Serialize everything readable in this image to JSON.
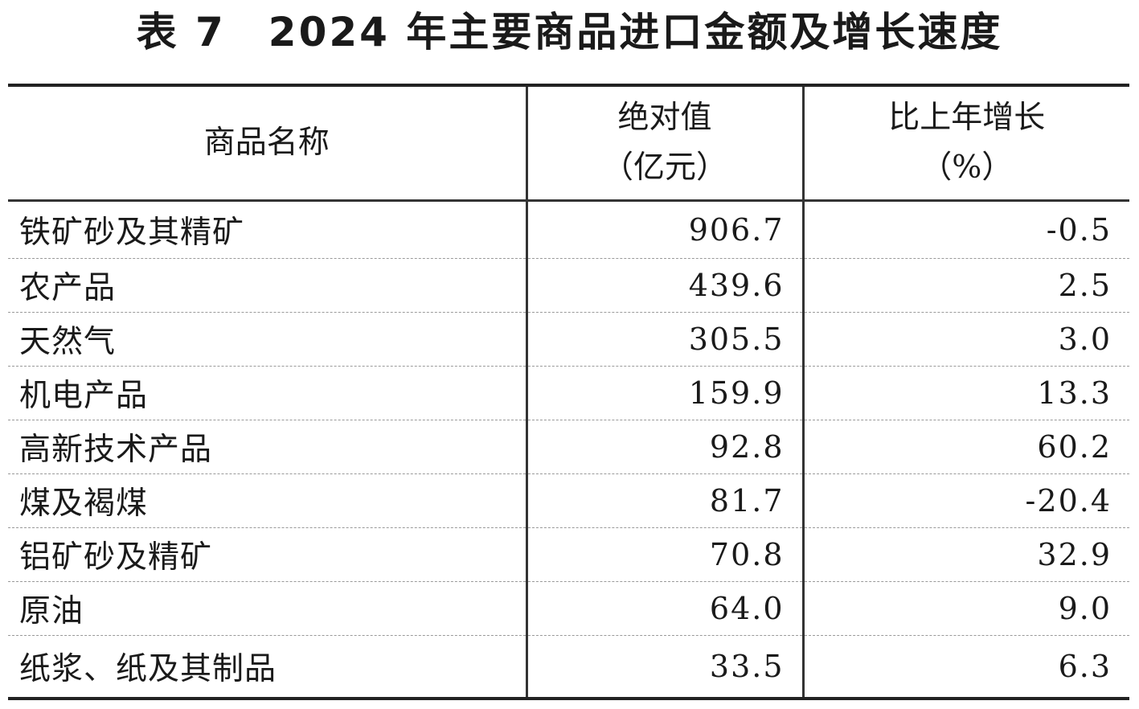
{
  "title": "表 7　2024 年主要商品进口金额及增长速度",
  "table": {
    "headers": {
      "name": "商品名称",
      "value_line1": "绝对值",
      "value_line2": "（亿元）",
      "growth_line1": "比上年增长",
      "growth_line2": "（%）"
    },
    "rows": [
      {
        "name": "铁矿砂及其精矿",
        "value": "906.7",
        "growth": "-0.5"
      },
      {
        "name": "农产品",
        "value": "439.6",
        "growth": "2.5"
      },
      {
        "name": "天然气",
        "value": "305.5",
        "growth": "3.0"
      },
      {
        "name": "机电产品",
        "value": "159.9",
        "growth": "13.3"
      },
      {
        "name": "高新技术产品",
        "value": "92.8",
        "growth": "60.2"
      },
      {
        "name": "煤及褐煤",
        "value": "81.7",
        "growth": "-20.4"
      },
      {
        "name": "铝矿砂及精矿",
        "value": "70.8",
        "growth": "32.9"
      },
      {
        "name": "原油",
        "value": "64.0",
        "growth": "9.0"
      },
      {
        "name": "纸浆、纸及其制品",
        "value": "33.5",
        "growth": "6.3"
      }
    ]
  }
}
